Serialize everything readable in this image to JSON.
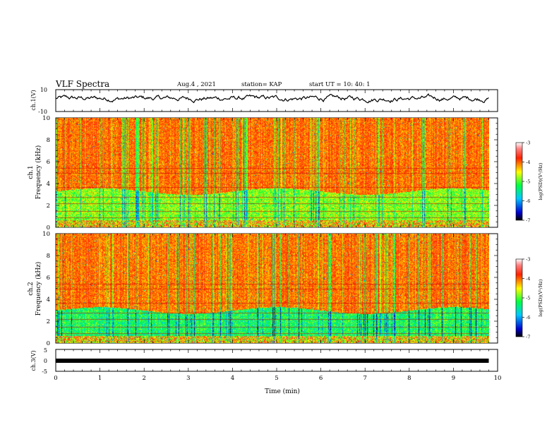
{
  "header": {
    "title": "VLF Spectra",
    "date": "Aug.4 , 2021",
    "station": "station= KAP",
    "start": "start UT = 10: 40: 1"
  },
  "chart_data": [
    {
      "type": "line",
      "panel": "ch1-waveform",
      "ylabel": "ch.1(V)",
      "ylim": [
        -10,
        10
      ],
      "y_ticks": [
        "10",
        "-10"
      ],
      "x_range_min": [
        0,
        10
      ],
      "data_extent_min": [
        0,
        9.8
      ],
      "series": [
        {
          "values_mean": 2,
          "values_range": [
            -3,
            8
          ]
        }
      ]
    },
    {
      "type": "heatmap",
      "panel": "ch1-spectrogram",
      "ylabel": "ch.1 Frequency (kHz)",
      "ylim": [
        0,
        10
      ],
      "y_ticks": [
        "0",
        "2",
        "4",
        "6",
        "8",
        "10"
      ],
      "x_range_min": [
        0,
        10
      ],
      "data_extent_min": [
        0,
        9.8
      ],
      "dominant_color_band_khz": [
        {
          "from": 0,
          "to": 0.8,
          "level": "mixed"
        },
        {
          "from": 0.8,
          "to": 3.3,
          "level": "green/yellow (~-5)"
        },
        {
          "from": 3.3,
          "to": 10,
          "level": "red/yellow (~-3.5)"
        }
      ],
      "colorbar": {
        "label": "log(PSD)(V²/Hz)",
        "range": [
          -7,
          -3
        ],
        "ticks": [
          "-3",
          "-4",
          "-5",
          "-6",
          "-7"
        ]
      }
    },
    {
      "type": "heatmap",
      "panel": "ch2-spectrogram",
      "ylabel": "ch.2 Frequency (kHz)",
      "ylim": [
        0,
        10
      ],
      "y_ticks": [
        "0",
        "2",
        "4",
        "6",
        "8",
        "10"
      ],
      "x_range_min": [
        0,
        10
      ],
      "data_extent_min": [
        0,
        9.8
      ],
      "dominant_color_band_khz": [
        {
          "from": 0,
          "to": 0.6,
          "level": "mixed"
        },
        {
          "from": 0.6,
          "to": 3.0,
          "level": "green/cyan (~-5.5)"
        },
        {
          "from": 3.0,
          "to": 10,
          "level": "red/yellow (~-3.5)"
        }
      ],
      "colorbar": {
        "label": "log(PSD)(V²/Hz)",
        "range": [
          -7,
          -3
        ],
        "ticks": [
          "-3",
          "-4",
          "-5",
          "-6",
          "-7"
        ]
      }
    },
    {
      "type": "line",
      "panel": "ch3-waveform",
      "ylabel": "ch.3(V)",
      "ylim": [
        -5,
        5
      ],
      "y_ticks": [
        "5",
        "0",
        "-5"
      ],
      "xlabel": "Time (min)",
      "x_ticks": [
        "0",
        "1",
        "2",
        "3",
        "4",
        "5",
        "6",
        "7",
        "8",
        "9",
        "10"
      ],
      "x_range_min": [
        0,
        10
      ],
      "data_extent_min": [
        0,
        9.8
      ],
      "series": [
        {
          "values_mean": 0,
          "values_range": [
            -0.3,
            0.3
          ]
        }
      ]
    }
  ],
  "colors": {
    "frame": "#000000",
    "colormap": [
      "#000000",
      "#0000ff",
      "#00b4ff",
      "#00ff00",
      "#ffff00",
      "#ff0000",
      "#ffffff"
    ]
  }
}
